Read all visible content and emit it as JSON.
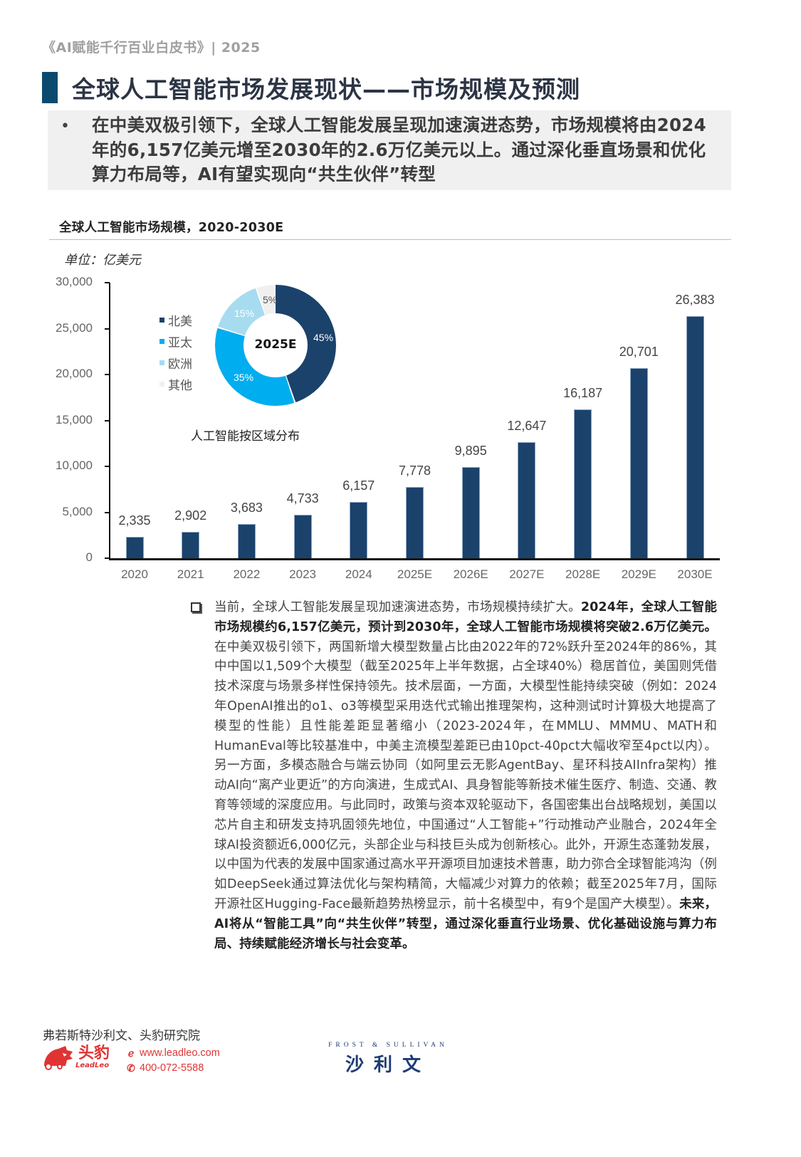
{
  "header": {
    "doc_title": "《AI赋能千行百业白皮书》| 2025"
  },
  "page": {
    "title": "全球人工智能市场发展现状——市场规模及预测",
    "accent_color": "#0b4a6f"
  },
  "summary": {
    "bullet": "•",
    "text": "在中美双极引领下，全球人工智能发展呈现加速演进态势，市场规模将由2024年的6,157亿美元增至2030年的2.6万亿美元以上。通过深化垂直场景和优化算力布局等，AI有望实现向“共生伙伴”转型"
  },
  "chart": {
    "title": "全球人工智能市场规模，2020-2030E",
    "unit": "单位：亿美元",
    "y_ticks": [
      "30,000",
      "25,000",
      "20,000",
      "15,000",
      "10,000",
      "5,000",
      "0"
    ],
    "categories": [
      "2020",
      "2021",
      "2022",
      "2023",
      "2024",
      "2025E",
      "2026E",
      "2027E",
      "2028E",
      "2029E",
      "2030E"
    ],
    "value_labels": [
      "2,335",
      "2,902",
      "3,683",
      "4,733",
      "6,157",
      "7,778",
      "9,895",
      "12,647",
      "16,187",
      "20,701",
      "26,383"
    ],
    "bar_color": "#1b426b",
    "donut": {
      "center_label": "2025E",
      "caption": "人工智能按区域分布",
      "segments": [
        {
          "label": "北美",
          "pct": "45%",
          "color": "#1b426b"
        },
        {
          "label": "亚太",
          "pct": "35%",
          "color": "#00adef"
        },
        {
          "label": "欧洲",
          "pct": "15%",
          "color": "#a7dcf0"
        },
        {
          "label": "其他",
          "pct": "5%",
          "color": "#f0f0f0"
        }
      ]
    }
  },
  "chart_data": [
    {
      "type": "bar",
      "title": "全球人工智能市场规模，2020-2030E",
      "xlabel": "",
      "ylabel": "单位：亿美元",
      "categories": [
        "2020",
        "2021",
        "2022",
        "2023",
        "2024",
        "2025E",
        "2026E",
        "2027E",
        "2028E",
        "2029E",
        "2030E"
      ],
      "values": [
        2335,
        2902,
        3683,
        4733,
        6157,
        7778,
        9895,
        12647,
        16187,
        20701,
        26383
      ],
      "ylim": [
        0,
        30000
      ],
      "yticks": [
        0,
        5000,
        10000,
        15000,
        20000,
        25000,
        30000
      ],
      "grid": false,
      "data_labels": true
    },
    {
      "type": "pie",
      "title": "人工智能按区域分布",
      "center_label": "2025E",
      "donut": true,
      "categories": [
        "北美",
        "亚太",
        "欧洲",
        "其他"
      ],
      "values": [
        45,
        35,
        15,
        5
      ],
      "unit": "%",
      "legend_position": "left"
    }
  ],
  "body": {
    "icon": "checkbox-icon",
    "p1": "当前，全球人工智能发展呈现加速演进态势，市场规模持续扩大。",
    "b1": "2024年，全球人工智能市场规模约6,157亿美元，预计到2030年，全球人工智能市场规模将突破2.6万亿美元。",
    "p2": "在中美双极引领下，两国新增大模型数量占比由2022年的72%跃升至2024年的86%，其中中国以1,509个大模型（截至2025年上半年数据，占全球40%）稳居首位，美国则凭借技术深度与场景多样性保持领先。技术层面，一方面，大模型性能持续突破（例如：2024年OpenAI推出的o1、o3等模型采用迭代式输出推理架构，这种测试时计算极大地提高了模型的性能）且性能差距显著缩小（2023-2024年，在MMLU、MMMU、MATH和HumanEval等比较基准中，中美主流模型差距已由10pct-40pct大幅收窄至4pct以内）。另一方面，多模态融合与端云协同（如阿里云无影AgentBay、星环科技AIInfra架构）推动AI向“离产业更近”的方向演进，生成式AI、具身智能等新技术催生医疗、制造、交通、教育等领域的深度应用。与此同时，政策与资本双轮驱动下，各国密集出台战略规划，美国以芯片自主和研发支持巩固领先地位，中国通过“人工智能+”行动推动产业融合，2024年全球AI投资额近6,000亿元，头部企业与科技巨头成为创新核心。此外，开源生态蓬勃发展，以中国为代表的发展中国家通过高水平开源项目加速技术普惠，助力弥合全球智能鸿沟（例如DeepSeek通过算法优化与架构精简，大幅减少对算力的依赖；截至2025年7月，国际开源社区Hugging-Face最新趋势热榜显示，前十名模型中，有9个是国产大模型）。",
    "b2": "未来，AI将从“智能工具”向“共生伙伴”转型，通过深化垂直行业场景、优化基础设施与算力布局、持续赋能经济增长与社会变革。"
  },
  "footer": {
    "source": "弗若斯特沙利文、头豹研究院",
    "leadleo_cn": "头豹",
    "leadleo_en": "LeadLeo",
    "website": "www.leadleo.com",
    "phone": "400-072-5588",
    "fs_en": "FROST & SULLIVAN",
    "fs_cn": "沙利文",
    "brand_red": "#e03434",
    "brand_navy": "#1f3c73"
  }
}
